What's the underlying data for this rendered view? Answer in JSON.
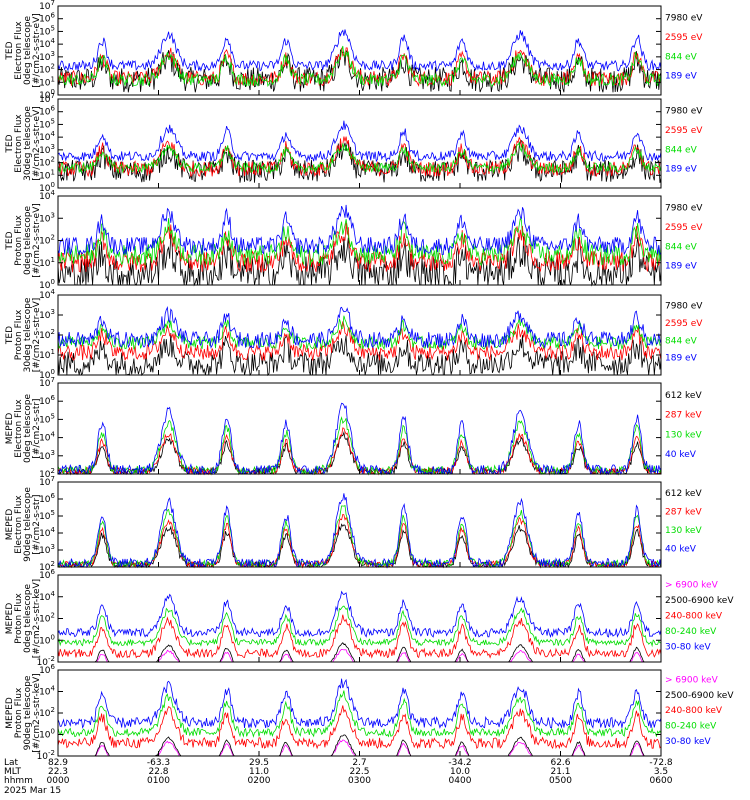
{
  "footer": {
    "row_labels": [
      "Lat",
      "MLT",
      "hhmm",
      "2025 Mar 15"
    ],
    "ticks": [
      {
        "lat": "82.9",
        "mlt": "22.3",
        "hhmm": "0000"
      },
      {
        "lat": "-63.3",
        "mlt": "22.8",
        "hhmm": "0100"
      },
      {
        "lat": "29.5",
        "mlt": "11.0",
        "hhmm": "0200"
      },
      {
        "lat": "2.7",
        "mlt": "22.5",
        "hhmm": "0300"
      },
      {
        "lat": "-34.2",
        "mlt": "10.0",
        "hhmm": "0400"
      },
      {
        "lat": "62.6",
        "mlt": "21.1",
        "hhmm": "0500"
      },
      {
        "lat": "-72.8",
        "mlt": "3.5",
        "hhmm": "0600"
      }
    ]
  },
  "chart_data": [
    {
      "type": "line",
      "ylabel": [
        "TED",
        "Electron Flux",
        "0deg telescope",
        "[#/cm2-s-str-eV]"
      ],
      "ylog": [
        0,
        7
      ],
      "yticks": [
        "10^0",
        "10^1",
        "10^2",
        "10^3",
        "10^4",
        "10^5",
        "10^6",
        "10^7"
      ],
      "xlim": [
        0,
        6
      ],
      "series": [
        {
          "name": "7980 eV",
          "color": "#000000",
          "base": 1.2,
          "spread": 1.0,
          "hump": 1.6
        },
        {
          "name": "2595 eV",
          "color": "#ff0000",
          "base": 1.3,
          "spread": 0.6,
          "hump": 2.0
        },
        {
          "name": "844 eV",
          "color": "#00dd00",
          "base": 1.2,
          "spread": 0.5,
          "hump": 2.0
        },
        {
          "name": "189 eV",
          "color": "#0000ff",
          "base": 2.3,
          "spread": 0.4,
          "hump": 2.5
        }
      ]
    },
    {
      "type": "line",
      "ylabel": [
        "TED",
        "Electron Flux",
        "30deg telescope",
        "[#/cm2-s-str-eV]"
      ],
      "ylog": [
        0,
        7
      ],
      "yticks": [
        "10^0",
        "10^1",
        "10^2",
        "10^3",
        "10^4",
        "10^5",
        "10^6",
        "10^7"
      ],
      "xlim": [
        0,
        6
      ],
      "series": [
        {
          "name": "7980 eV",
          "color": "#000000",
          "base": 1.3,
          "spread": 0.9,
          "hump": 1.6
        },
        {
          "name": "2595 eV",
          "color": "#ff0000",
          "base": 1.5,
          "spread": 0.6,
          "hump": 2.0
        },
        {
          "name": "844 eV",
          "color": "#00dd00",
          "base": 1.6,
          "spread": 0.4,
          "hump": 1.6
        },
        {
          "name": "189 eV",
          "color": "#0000ff",
          "base": 2.5,
          "spread": 0.4,
          "hump": 2.2
        }
      ]
    },
    {
      "type": "line",
      "ylabel": [
        "TED",
        "Proton Flux",
        "0deg telescope",
        "[#/cm2-s-str-eV]"
      ],
      "ylog": [
        0,
        5
      ],
      "yticks": [
        "10^0",
        "10^1",
        "10^2",
        "10^3",
        "10^4"
      ],
      "xlim": [
        0,
        6
      ],
      "series": [
        {
          "name": "7980 eV",
          "color": "#000000",
          "base": 0.6,
          "spread": 1.0,
          "hump": 1.4
        },
        {
          "name": "2595 eV",
          "color": "#ff0000",
          "base": 1.3,
          "spread": 0.6,
          "hump": 1.6
        },
        {
          "name": "844 eV",
          "color": "#00dd00",
          "base": 1.7,
          "spread": 0.6,
          "hump": 1.5
        },
        {
          "name": "189 eV",
          "color": "#0000ff",
          "base": 2.2,
          "spread": 0.5,
          "hump": 1.8
        }
      ]
    },
    {
      "type": "line",
      "ylabel": [
        "TED",
        "Proton Flux",
        "30deg telescope",
        "[#/cm2-s-str-eV]"
      ],
      "ylog": [
        0,
        5
      ],
      "yticks": [
        "10^0",
        "10^1",
        "10^2",
        "10^3",
        "10^4"
      ],
      "xlim": [
        0,
        6
      ],
      "series": [
        {
          "name": "7980 eV",
          "color": "#000000",
          "base": 0.7,
          "spread": 0.8,
          "hump": 1.2
        },
        {
          "name": "2595 eV",
          "color": "#ff0000",
          "base": 1.4,
          "spread": 0.5,
          "hump": 1.4
        },
        {
          "name": "844 eV",
          "color": "#00dd00",
          "base": 2.0,
          "spread": 0.4,
          "hump": 1.2
        },
        {
          "name": "189 eV",
          "color": "#0000ff",
          "base": 2.2,
          "spread": 0.5,
          "hump": 1.6
        }
      ]
    },
    {
      "type": "line",
      "ylabel": [
        "MEPED",
        "Electron Flux",
        "0deg telescope",
        "[#/cm2-s-str]"
      ],
      "ylog": [
        2,
        7
      ],
      "yticks": [
        "10^2",
        "10^3",
        "10^4",
        "10^5",
        "10^6",
        "10^7"
      ],
      "xlim": [
        0,
        6
      ],
      "series": [
        {
          "name": "612 keV",
          "color": "#000000",
          "base": 2.1,
          "spread": 0.2,
          "hump": 1.8
        },
        {
          "name": "287 keV",
          "color": "#ff0000",
          "base": 2.15,
          "spread": 0.2,
          "hump": 2.0
        },
        {
          "name": "130 keV",
          "color": "#00dd00",
          "base": 2.2,
          "spread": 0.25,
          "hump": 2.6
        },
        {
          "name": "40 keV",
          "color": "#0000ff",
          "base": 2.2,
          "spread": 0.3,
          "hump": 3.2
        }
      ]
    },
    {
      "type": "line",
      "ylabel": [
        "MEPED",
        "Electron Flux",
        "90deg telescope",
        "[#/cm2-s-str]"
      ],
      "ylog": [
        2,
        7
      ],
      "yticks": [
        "10^2",
        "10^3",
        "10^4",
        "10^5",
        "10^6",
        "10^7"
      ],
      "xlim": [
        0,
        6
      ],
      "series": [
        {
          "name": "612 keV",
          "color": "#000000",
          "base": 2.1,
          "spread": 0.2,
          "hump": 2.2
        },
        {
          "name": "287 keV",
          "color": "#ff0000",
          "base": 2.15,
          "spread": 0.2,
          "hump": 2.6
        },
        {
          "name": "130 keV",
          "color": "#00dd00",
          "base": 2.2,
          "spread": 0.2,
          "hump": 3.0
        },
        {
          "name": "40 keV",
          "color": "#0000ff",
          "base": 2.2,
          "spread": 0.3,
          "hump": 3.6
        }
      ]
    },
    {
      "type": "line",
      "ylabel": [
        "MEPED",
        "Proton Flux",
        "0deg telescope",
        "[#/cm2-s-str-keV]"
      ],
      "ylog": [
        -2,
        6
      ],
      "yticks": [
        "10^-2",
        "10^0",
        "10^2",
        "10^4",
        "10^6"
      ],
      "xlim": [
        0,
        6
      ],
      "series": [
        {
          "name": "> 6900 keV",
          "color": "#ff00ff",
          "base": -2.5,
          "spread": 0.1,
          "hump": 1.5
        },
        {
          "name": "2500-6900 keV",
          "color": "#000000",
          "base": -2.5,
          "spread": 0.1,
          "hump": 2.0
        },
        {
          "name": "240-800 keV",
          "color": "#ff0000",
          "base": -1.2,
          "spread": 0.4,
          "hump": 3.0
        },
        {
          "name": "80-240 keV",
          "color": "#00dd00",
          "base": -0.2,
          "spread": 0.3,
          "hump": 3.0
        },
        {
          "name": "30-80 keV",
          "color": "#0000ff",
          "base": 0.7,
          "spread": 0.4,
          "hump": 3.2
        }
      ]
    },
    {
      "type": "line",
      "ylabel": [
        "MEPED",
        "Proton Flux",
        "90deg telescope",
        "[#/cm2-s-str-keV]"
      ],
      "ylog": [
        -2,
        6
      ],
      "yticks": [
        "10^-2",
        "10^0",
        "10^2",
        "10^4",
        "10^6"
      ],
      "xlim": [
        0,
        6
      ],
      "series": [
        {
          "name": "> 6900 keV",
          "color": "#ff00ff",
          "base": -2.5,
          "spread": 0.1,
          "hump": 1.8
        },
        {
          "name": "2500-6900 keV",
          "color": "#000000",
          "base": -2.5,
          "spread": 0.1,
          "hump": 2.2
        },
        {
          "name": "240-800 keV",
          "color": "#ff0000",
          "base": -0.8,
          "spread": 0.5,
          "hump": 3.0
        },
        {
          "name": "80-240 keV",
          "color": "#00dd00",
          "base": 0.2,
          "spread": 0.4,
          "hump": 3.2
        },
        {
          "name": "30-80 keV",
          "color": "#0000ff",
          "base": 1.1,
          "spread": 0.5,
          "hump": 3.4
        }
      ]
    }
  ],
  "passes": {
    "hump_centers_hours": [
      0.44,
      1.1,
      1.68,
      2.27,
      2.84,
      3.44,
      4.02,
      4.6,
      5.18,
      5.76
    ],
    "hump_widths_hours": [
      0.06,
      0.1,
      0.06,
      0.06,
      0.1,
      0.06,
      0.06,
      0.1,
      0.06,
      0.06
    ],
    "hump_scale": [
      0.8,
      1.0,
      0.9,
      0.8,
      1.1,
      0.9,
      0.8,
      1.0,
      0.8,
      0.9
    ]
  }
}
